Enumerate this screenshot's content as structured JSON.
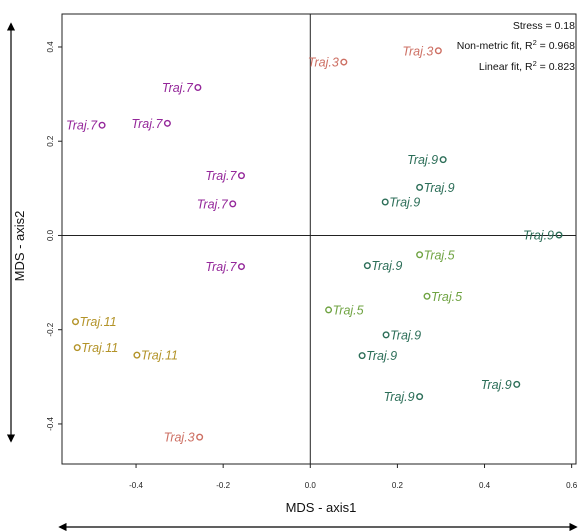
{
  "chart_data": {
    "type": "scatter",
    "xlabel": "MDS - axis1",
    "ylabel": "MDS - axis2",
    "xlim": [
      -0.57,
      0.61
    ],
    "ylim": [
      -0.485,
      0.47
    ],
    "x_ticks": [
      -0.4,
      -0.2,
      0.0,
      0.2,
      0.4,
      0.6
    ],
    "x_tick_labels": [
      "-0.4",
      "-0.2",
      "0.0",
      "0.2",
      "0.4",
      "0.6"
    ],
    "y_ticks": [
      -0.4,
      -0.2,
      0.0,
      0.2,
      0.4
    ],
    "y_tick_labels": [
      "-0.4",
      "-0.2",
      "0.0",
      "0.2",
      "0.4"
    ],
    "reference_lines": {
      "x": 0,
      "y": 0
    },
    "grid": false,
    "legend": "none",
    "stats": {
      "stress": "Stress = 0.18",
      "nonmetric_prefix": "Non-metric fit, R",
      "nonmetric_value": " = 0.968",
      "linear_prefix": "Linear fit, R",
      "linear_value": " = 0.823",
      "exponent": "2"
    },
    "colors": {
      "Traj.3": "#cd6f63",
      "Traj.5": "#6fa342",
      "Traj.7": "#94279a",
      "Traj.9": "#2c6e58",
      "Traj.11": "#b39328"
    },
    "points": [
      {
        "x": 0.294,
        "y": 0.392,
        "label": "Traj.3",
        "side": "left"
      },
      {
        "x": 0.077,
        "y": 0.368,
        "label": "Traj.3",
        "side": "left"
      },
      {
        "x": -0.254,
        "y": -0.428,
        "label": "Traj.3",
        "side": "left"
      },
      {
        "x": -0.258,
        "y": 0.314,
        "label": "Traj.7",
        "side": "left"
      },
      {
        "x": -0.328,
        "y": 0.238,
        "label": "Traj.7",
        "side": "left"
      },
      {
        "x": -0.478,
        "y": 0.234,
        "label": "Traj.7",
        "side": "left"
      },
      {
        "x": -0.158,
        "y": 0.127,
        "label": "Traj.7",
        "side": "left"
      },
      {
        "x": -0.178,
        "y": 0.067,
        "label": "Traj.7",
        "side": "left"
      },
      {
        "x": -0.158,
        "y": -0.066,
        "label": "Traj.7",
        "side": "left"
      },
      {
        "x": -0.539,
        "y": -0.183,
        "label": "Traj.11",
        "side": "right"
      },
      {
        "x": -0.535,
        "y": -0.238,
        "label": "Traj.11",
        "side": "right"
      },
      {
        "x": -0.398,
        "y": -0.254,
        "label": "Traj.11",
        "side": "right"
      },
      {
        "x": 0.305,
        "y": 0.161,
        "label": "Traj.9",
        "side": "left"
      },
      {
        "x": 0.251,
        "y": 0.102,
        "label": "Traj.9",
        "side": "right"
      },
      {
        "x": 0.172,
        "y": 0.071,
        "label": "Traj.9",
        "side": "right"
      },
      {
        "x": 0.571,
        "y": 0.001,
        "label": "Traj.9",
        "side": "left"
      },
      {
        "x": 0.131,
        "y": -0.064,
        "label": "Traj.9",
        "side": "right"
      },
      {
        "x": 0.174,
        "y": -0.211,
        "label": "Traj.9",
        "side": "right"
      },
      {
        "x": 0.119,
        "y": -0.255,
        "label": "Traj.9",
        "side": "right"
      },
      {
        "x": 0.474,
        "y": -0.316,
        "label": "Traj.9",
        "side": "left"
      },
      {
        "x": 0.251,
        "y": -0.342,
        "label": "Traj.9",
        "side": "left"
      },
      {
        "x": 0.251,
        "y": -0.041,
        "label": "Traj.5",
        "side": "right"
      },
      {
        "x": 0.268,
        "y": -0.129,
        "label": "Traj.5",
        "side": "right"
      },
      {
        "x": 0.042,
        "y": -0.158,
        "label": "Traj.5",
        "side": "right"
      }
    ]
  }
}
